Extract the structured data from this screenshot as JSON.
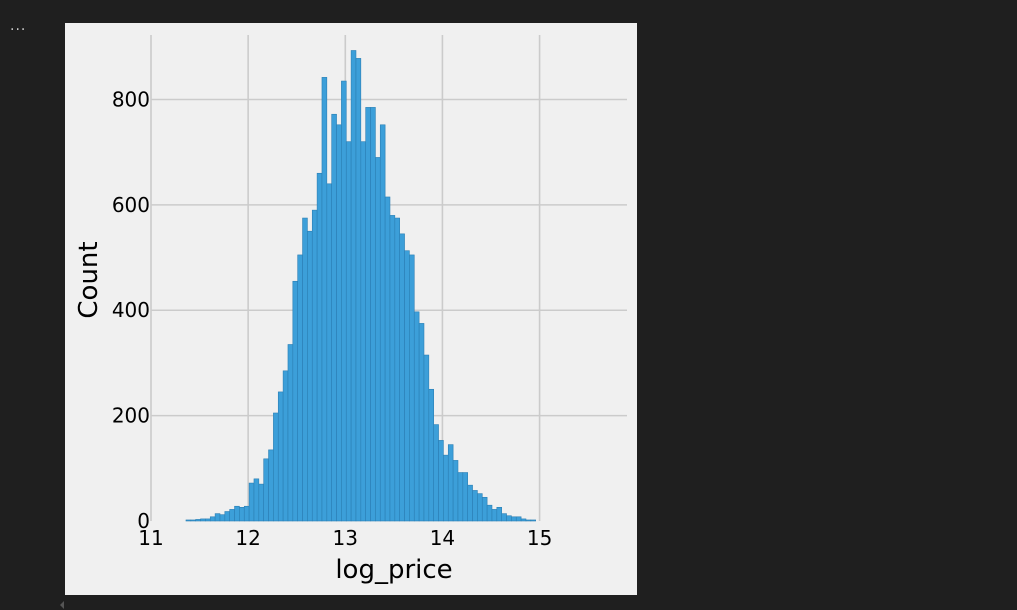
{
  "output_cell": {
    "marker": "..."
  },
  "colors": {
    "page_background": "#1f1f1f",
    "figure_background": "#f0f0f0",
    "bar_fill": "#3c9fd9",
    "bar_edge": "#2b7fb4",
    "grid": "#cbcbcb"
  },
  "chart_data": {
    "type": "bar",
    "title": "",
    "xlabel": "log_price",
    "ylabel": "Count",
    "xlim": [
      11,
      15.9
    ],
    "ylim": [
      0,
      930
    ],
    "xticks": [
      11,
      12,
      13,
      14,
      15
    ],
    "xtick_labels": [
      "11",
      "12",
      "13",
      "14",
      "15"
    ],
    "yticks": [
      0,
      200,
      400,
      600,
      800
    ],
    "ytick_labels": [
      "0",
      "200",
      "400",
      "600",
      "800"
    ],
    "grid": true,
    "legend": "none",
    "bin_start": 11.36,
    "bin_width": 0.05,
    "series": [
      {
        "values": [
          2,
          2,
          3,
          4,
          4,
          8,
          14,
          12,
          18,
          22,
          28,
          26,
          28,
          72,
          80,
          70,
          118,
          135,
          205,
          245,
          285,
          335,
          455,
          505,
          575,
          550,
          590,
          660,
          842,
          640,
          772,
          752,
          835,
          720,
          893,
          878,
          720,
          785,
          785,
          690,
          752,
          615,
          580,
          575,
          545,
          513,
          505,
          397,
          375,
          315,
          250,
          183,
          153,
          125,
          145,
          115,
          92,
          92,
          68,
          58,
          52,
          45,
          30,
          22,
          26,
          14,
          10,
          8,
          8,
          4,
          2,
          2
        ]
      }
    ]
  }
}
